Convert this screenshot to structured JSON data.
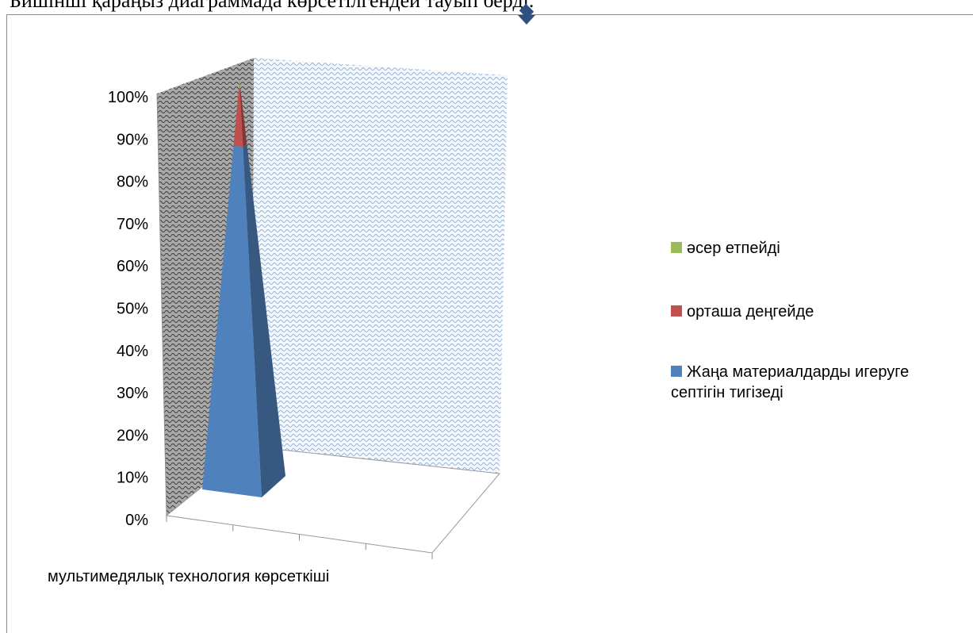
{
  "page": {
    "top_text": "Бишінші қараңыз диаграммада көрсетілгендей тауып берді."
  },
  "chart_data": {
    "type": "bar",
    "stacked": "100%",
    "shape": "3d-pyramid",
    "categories": [
      ""
    ],
    "xlabel": "мультимедялық технология көрсеткіші",
    "ylabel": "",
    "ylim": [
      0,
      100
    ],
    "y_ticks": [
      "0%",
      "10%",
      "20%",
      "30%",
      "40%",
      "50%",
      "60%",
      "70%",
      "80%",
      "90%",
      "100%"
    ],
    "grid": false,
    "legend_position": "right",
    "series": [
      {
        "name": "Жаңа материалдарды игеруге септігін тигізеді",
        "values": [
          84
        ],
        "color": "#4f81bd"
      },
      {
        "name": "орташа деңгейде",
        "values": [
          14
        ],
        "color": "#c0504d"
      },
      {
        "name": "әсер етпейді",
        "values": [
          2
        ],
        "color": "#9bbb59"
      }
    ]
  }
}
